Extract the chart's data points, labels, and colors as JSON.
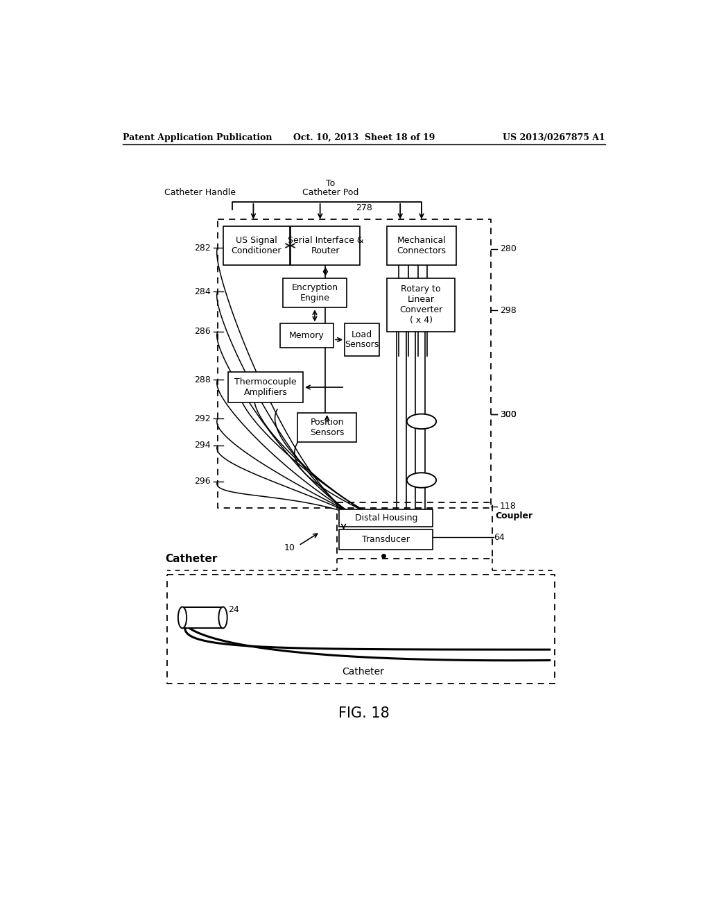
{
  "header_left": "Patent Application Publication",
  "header_mid": "Oct. 10, 2013  Sheet 18 of 19",
  "header_right": "US 2013/0267875 A1",
  "fig_label": "FIG. 18",
  "label_278": "278",
  "label_280": "280",
  "label_282": "282",
  "label_284": "284",
  "label_286": "286",
  "label_288": "288",
  "label_292": "292",
  "label_294": "294",
  "label_296": "296",
  "label_298": "298",
  "label_300": "300",
  "label_118": "118",
  "label_64": "64",
  "label_10": "10",
  "label_24": "24",
  "box_us_signal": "US Signal\nConditioner",
  "box_serial": "Serial Interface &\nRouter",
  "box_mechanical": "Mechanical\nConnectors",
  "box_encryption": "Encryption\nEngine",
  "box_memory": "Memory",
  "box_load": "Load\nSensors",
  "box_rotary": "Rotary to\nLinear\nConverter\n( x 4)",
  "box_thermocouple": "Thermocouple\nAmplifiers",
  "box_position": "Position\nSensors",
  "box_distal": "Distal Housing",
  "box_transducer": "Transducer",
  "label_coupler": "Coupler",
  "label_catheter_bold": "Catheter",
  "label_catheter_bottom": "Catheter",
  "title_catheter_handle": "Catheter Handle",
  "title_to": "To",
  "title_catheter_pod": "Catheter Pod",
  "bg_color": "#ffffff",
  "line_color": "#000000",
  "text_color": "#000000"
}
